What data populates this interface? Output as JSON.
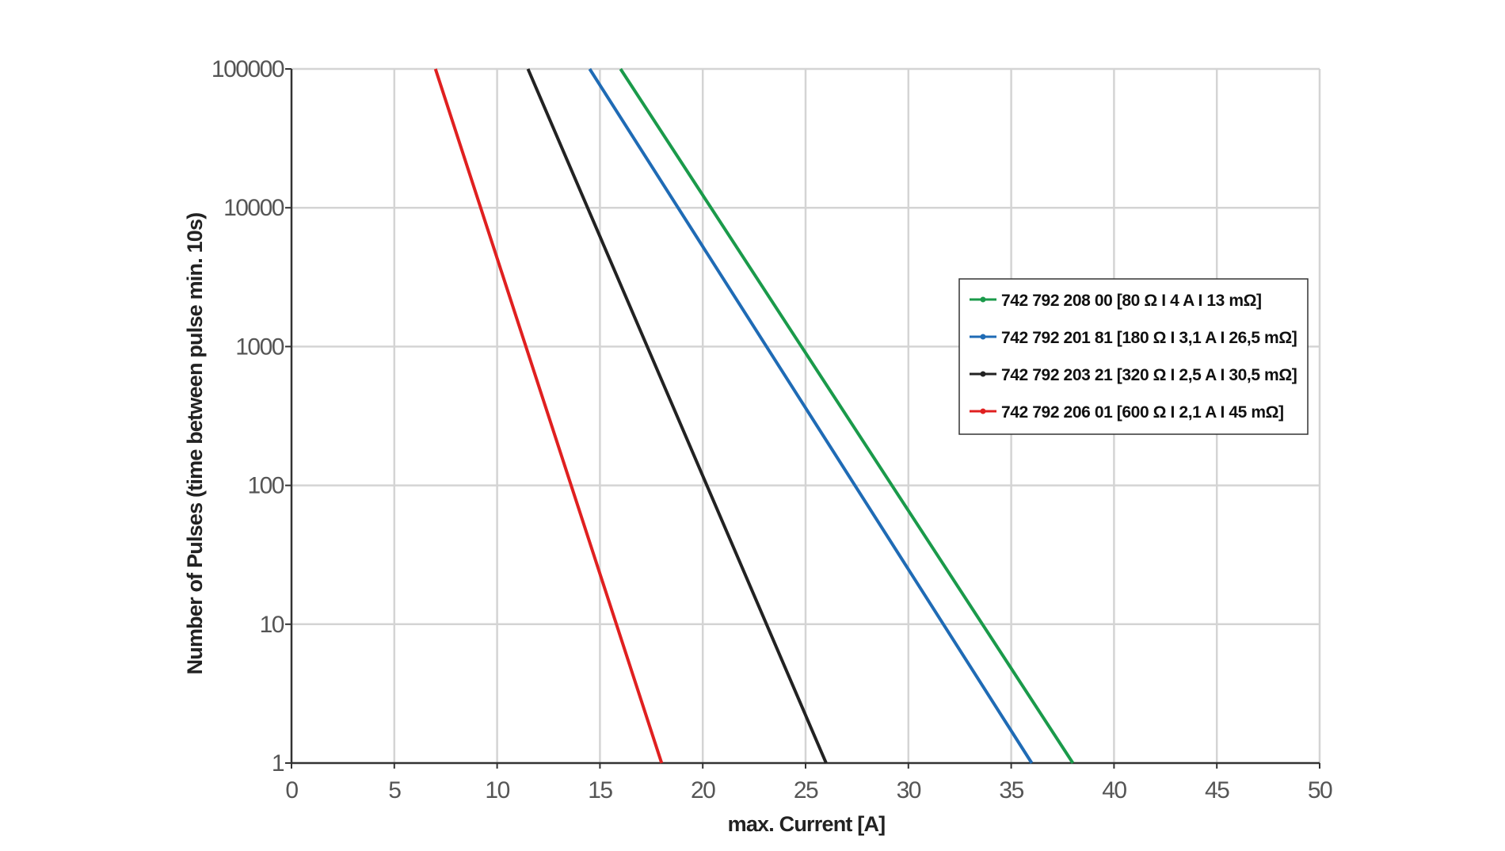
{
  "chart_data": {
    "type": "line",
    "xlabel": "max. Current [A]",
    "ylabel": "Number of Pulses  (time between pulse min. 10s)",
    "xlim": [
      0,
      50
    ],
    "ylim": [
      1,
      100000
    ],
    "yscale": "log",
    "grid": true,
    "legend_position": "right",
    "x_ticks": [
      "0",
      "5",
      "10",
      "15",
      "20",
      "25",
      "30",
      "35",
      "40",
      "45",
      "50"
    ],
    "x_tick_values": [
      0,
      5,
      10,
      15,
      20,
      25,
      30,
      35,
      40,
      45,
      50
    ],
    "y_ticks": [
      "1",
      "10",
      "100",
      "1000",
      "10000",
      "100000"
    ],
    "y_tick_values": [
      1,
      10,
      100,
      1000,
      10000,
      100000
    ],
    "series": [
      {
        "name": "742 792 208 00 [80 Ω I 4 A I 13 mΩ]",
        "color": "#1a9a4a",
        "points": [
          {
            "x": 16,
            "y": 100000
          },
          {
            "x": 38,
            "y": 1
          }
        ]
      },
      {
        "name": "742 792 201 81 [180 Ω I 3,1 A I 26,5 mΩ]",
        "color": "#1f6bb5",
        "points": [
          {
            "x": 14.5,
            "y": 100000
          },
          {
            "x": 36,
            "y": 1
          }
        ]
      },
      {
        "name": "742 792 203 21 [320 Ω I 2,5 A I 30,5 mΩ]",
        "color": "#222222",
        "points": [
          {
            "x": 11.5,
            "y": 100000
          },
          {
            "x": 26,
            "y": 1
          }
        ]
      },
      {
        "name": "742 792 206 01 [600 Ω I 2,1 A I 45 mΩ]",
        "color": "#e02020",
        "points": [
          {
            "x": 7,
            "y": 100000
          },
          {
            "x": 18,
            "y": 1
          }
        ]
      }
    ]
  }
}
